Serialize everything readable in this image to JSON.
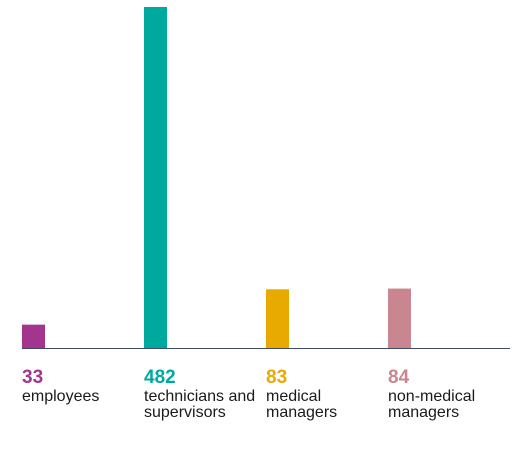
{
  "chart_data": {
    "type": "bar",
    "categories": [
      "employees",
      "technicians and supervisors",
      "medical managers",
      "non-medical managers"
    ],
    "values": [
      33,
      482,
      83,
      84
    ],
    "colors": [
      "#a3358f",
      "#00a99e",
      "#e9aa00",
      "#c98691"
    ]
  }
}
